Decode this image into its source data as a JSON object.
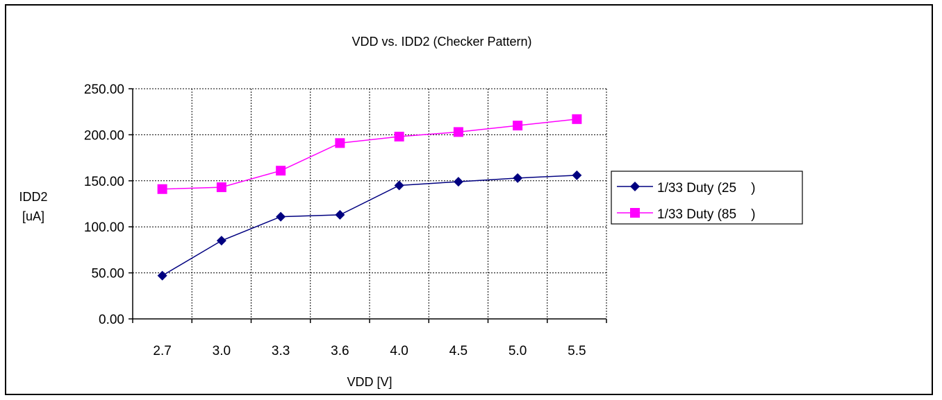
{
  "chart_data": {
    "type": "line",
    "title_main": "VDD vs. IDD2",
    "title_suffix": "(Checker Pattern)",
    "xlabel": "VDD [V]",
    "ylabel_line1": "IDD2",
    "ylabel_line2": "[uA]",
    "categories": [
      "2.7",
      "3.0",
      "3.3",
      "3.6",
      "4.0",
      "4.5",
      "5.0",
      "5.5"
    ],
    "ylim": [
      0,
      250
    ],
    "yticks": [
      "0.00",
      "50.00",
      "100.00",
      "150.00",
      "200.00",
      "250.00"
    ],
    "grid": true,
    "legend_position": "right",
    "series": [
      {
        "name": "1/33 Duty (25    )",
        "color": "#000080",
        "marker": "diamond",
        "values": [
          47,
          85,
          111,
          113,
          145,
          149,
          153,
          156
        ]
      },
      {
        "name": "1/33 Duty (85    )",
        "color": "#ff00ff",
        "marker": "square",
        "values": [
          141,
          143,
          161,
          191,
          198,
          203,
          210,
          217
        ]
      }
    ]
  }
}
